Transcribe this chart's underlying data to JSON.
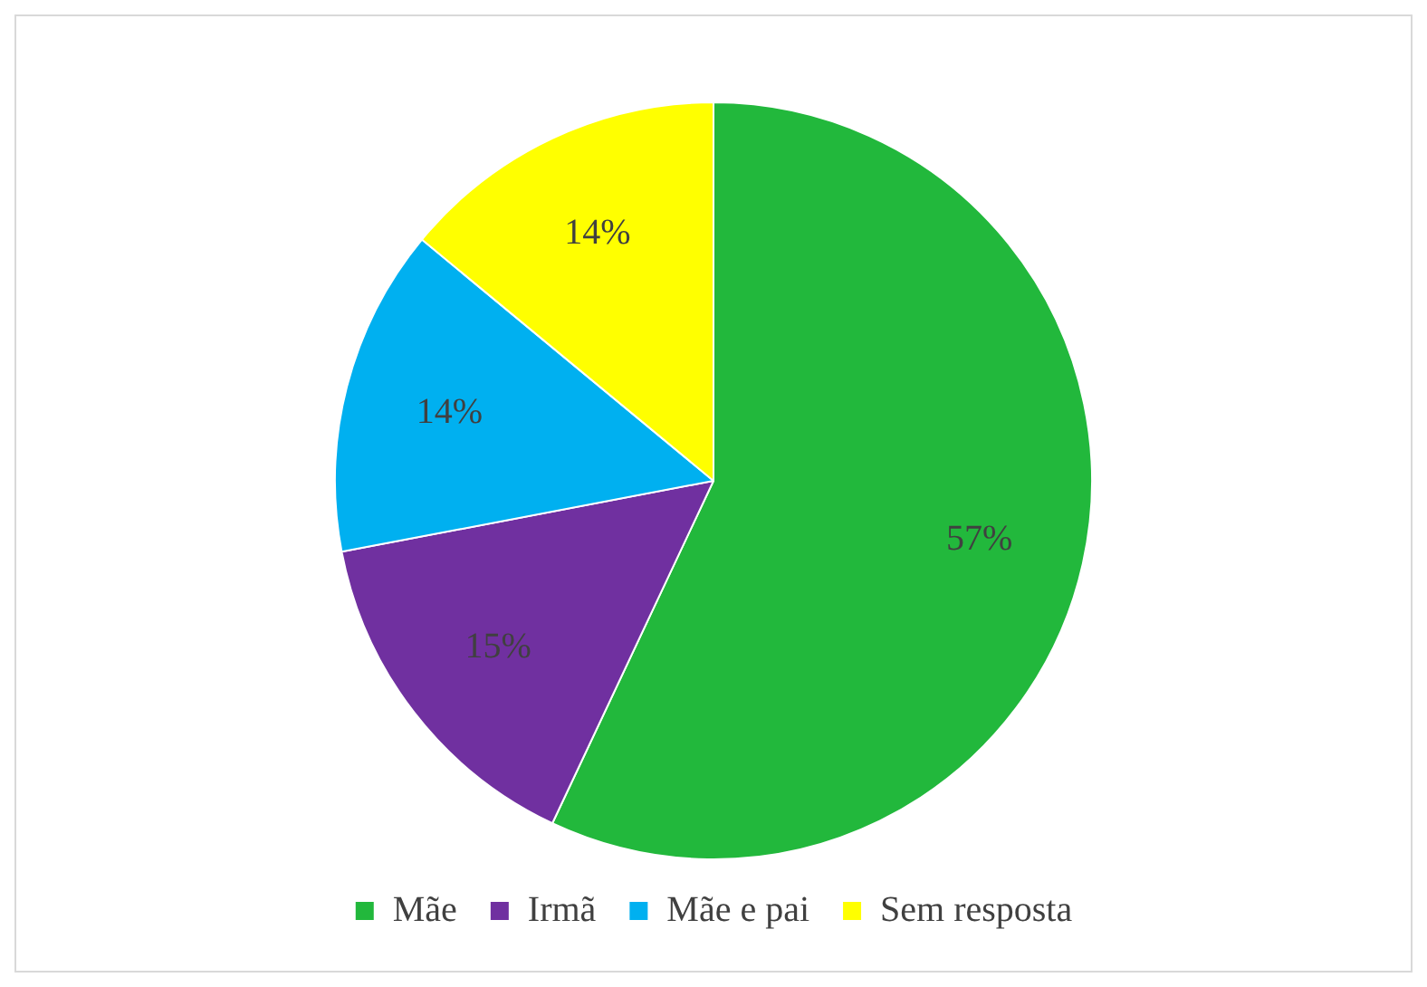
{
  "chart_data": {
    "type": "pie",
    "categories": [
      "Mãe",
      "Irmã",
      "Mãe e pai",
      "Sem resposta"
    ],
    "values": [
      57,
      15,
      14,
      14
    ],
    "colors": [
      "#22b83c",
      "#7030a0",
      "#00b0f0",
      "#ffff00"
    ],
    "value_labels": [
      "57%",
      "15%",
      "14%",
      "14%"
    ],
    "legend": "bottom"
  }
}
